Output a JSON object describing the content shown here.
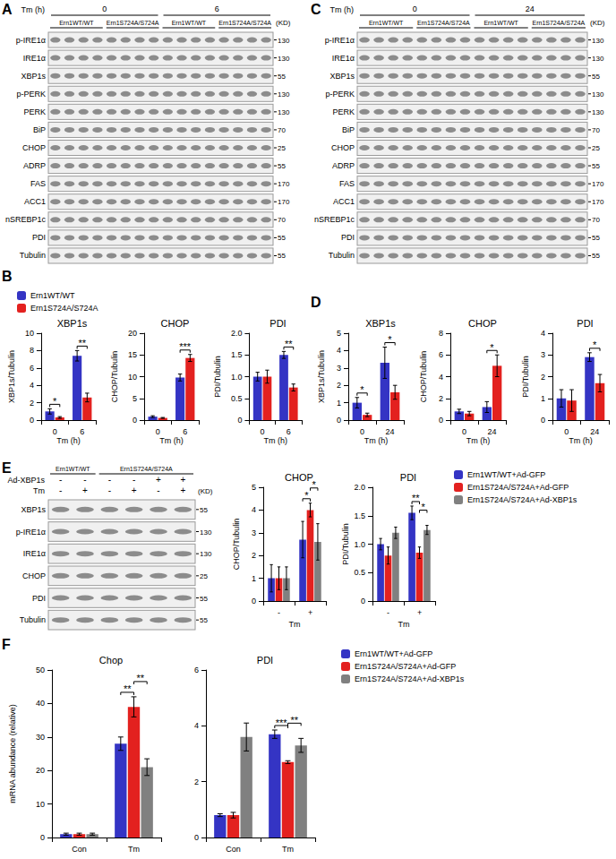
{
  "blots": [
    {
      "panel": "A",
      "condition_label": "Tm (h)",
      "conditions": [
        {
          "label": "0",
          "genotypes": [
            {
              "label": "Ern1WT/WT",
              "lanes": 4
            },
            {
              "label": "Ern1S724A/S724A",
              "lanes": 4
            }
          ]
        },
        {
          "label": "6",
          "genotypes": [
            {
              "label": "Ern1WT/WT",
              "lanes": 4
            },
            {
              "label": "Ern1S724A/S724A",
              "lanes": 4
            }
          ]
        }
      ],
      "kd_unit": "(KD)",
      "rows": [
        {
          "label": "p-IRE1α",
          "kd": 130
        },
        {
          "label": "IRE1α",
          "kd": 130
        },
        {
          "label": "XBP1s",
          "kd": 55
        },
        {
          "label": "p-PERK",
          "kd": 130
        },
        {
          "label": "PERK",
          "kd": 130
        },
        {
          "label": "BiP",
          "kd": 70
        },
        {
          "label": "CHOP",
          "kd": 25
        },
        {
          "label": "ADRP",
          "kd": 55
        },
        {
          "label": "FAS",
          "kd": 170
        },
        {
          "label": "ACC1",
          "kd": 170
        },
        {
          "label": "nSREBP1c",
          "kd": 70
        },
        {
          "label": "PDI",
          "kd": 55
        },
        {
          "label": "Tubulin",
          "kd": 55
        }
      ]
    },
    {
      "panel": "C",
      "condition_label": "Tm (h)",
      "conditions": [
        {
          "label": "0",
          "genotypes": [
            {
              "label": "Ern1WT/WT",
              "lanes": 4
            },
            {
              "label": "Ern1S724A/S724A",
              "lanes": 4
            }
          ]
        },
        {
          "label": "24",
          "genotypes": [
            {
              "label": "Ern1WT/WT",
              "lanes": 4
            },
            {
              "label": "Ern1S724A/S724A",
              "lanes": 4
            }
          ]
        }
      ],
      "kd_unit": "(KD)",
      "rows": [
        {
          "label": "p-IRE1α",
          "kd": 130
        },
        {
          "label": "IRE1α",
          "kd": 130
        },
        {
          "label": "XBP1s",
          "kd": 55
        },
        {
          "label": "p-PERK",
          "kd": 130
        },
        {
          "label": "PERK",
          "kd": 130
        },
        {
          "label": "BiP",
          "kd": 70
        },
        {
          "label": "CHOP",
          "kd": 25
        },
        {
          "label": "ADRP",
          "kd": 55
        },
        {
          "label": "FAS",
          "kd": 170
        },
        {
          "label": "ACC1",
          "kd": 170
        },
        {
          "label": "nSREBP1c",
          "kd": 70
        },
        {
          "label": "PDI",
          "kd": 55
        },
        {
          "label": "Tubulin",
          "kd": 55
        }
      ]
    },
    {
      "panel": "E",
      "genotypes": [
        {
          "label": "Ern1WT/WT",
          "lanes": 2
        },
        {
          "label": "Ern1S724A/S724A",
          "lanes": 4
        }
      ],
      "treatments": [
        {
          "label": "Ad-XBP1s",
          "signs": [
            "-",
            "-",
            "-",
            "-",
            "+",
            "+"
          ]
        },
        {
          "label": "Tm",
          "signs": [
            "-",
            "+",
            "-",
            "+",
            "-",
            "+"
          ]
        }
      ],
      "kd_unit": "(KD)",
      "rows": [
        {
          "label": "XBP1s",
          "kd": 55
        },
        {
          "label": "p-IRE1α",
          "kd": 130
        },
        {
          "label": "IRE1α",
          "kd": 130
        },
        {
          "label": "CHOP",
          "kd": 25
        },
        {
          "label": "PDI",
          "kd": 55
        },
        {
          "label": "Tubulin",
          "kd": 55
        }
      ]
    }
  ],
  "chart_data": [
    {
      "panel": "B",
      "type": "bar",
      "title": "XBP1s",
      "y_label": "XBP1s/Tubulin",
      "x_label": "Tm (h)",
      "categories": [
        "0",
        "6"
      ],
      "series": [
        {
          "name": "Ern1WT/WT",
          "color": "#3434c4",
          "values": [
            1.0,
            7.4
          ],
          "errors": [
            0.3,
            0.6
          ]
        },
        {
          "name": "Ern1S724A/S724A",
          "color": "#e3211f",
          "values": [
            0.3,
            2.6
          ],
          "errors": [
            0.1,
            0.5
          ]
        }
      ],
      "ylim": [
        0,
        10
      ],
      "yticks": [
        0,
        2,
        4,
        6,
        8,
        10
      ],
      "grid": false,
      "legend": "top-left",
      "annotations": [
        {
          "text": "*",
          "category": "0",
          "between": [
            "Ern1WT/WT",
            "Ern1S724A/S724A"
          ]
        },
        {
          "text": "**",
          "category": "6",
          "between": [
            "Ern1WT/WT",
            "Ern1S724A/S724A"
          ]
        }
      ]
    },
    {
      "type": "bar",
      "title": "CHOP",
      "y_label": "CHOP/Tubulin",
      "x_label": "Tm (h)",
      "categories": [
        "0",
        "6"
      ],
      "series": [
        {
          "name": "Ern1WT/WT",
          "color": "#3434c4",
          "values": [
            0.8,
            9.8
          ],
          "errors": [
            0.2,
            0.8
          ]
        },
        {
          "name": "Ern1S724A/S724A",
          "color": "#e3211f",
          "values": [
            0.5,
            14.3
          ],
          "errors": [
            0.1,
            0.8
          ]
        }
      ],
      "ylim": [
        0,
        20
      ],
      "yticks": [
        0,
        5,
        10,
        15,
        20
      ],
      "grid": false,
      "annotations": [
        {
          "text": "***",
          "category": "6",
          "between": [
            "Ern1WT/WT",
            "Ern1S724A/S724A"
          ]
        }
      ]
    },
    {
      "type": "bar",
      "title": "PDI",
      "y_label": "PDI/Tubulin",
      "x_label": "Tm (h)",
      "categories": [
        "0",
        "6"
      ],
      "series": [
        {
          "name": "Ern1WT/WT",
          "color": "#3434c4",
          "values": [
            1.0,
            1.5
          ],
          "errors": [
            0.1,
            0.08
          ]
        },
        {
          "name": "Ern1S724A/S724A",
          "color": "#e3211f",
          "values": [
            1.0,
            0.75
          ],
          "errors": [
            0.15,
            0.08
          ]
        }
      ],
      "ylim": [
        0,
        2
      ],
      "yticks": [
        0,
        0.5,
        {
          "value": 1,
          "label": "1.0"
        },
        1.5,
        {
          "value": 2,
          "label": "2.0"
        }
      ],
      "grid": false,
      "annotations": [
        {
          "text": "**",
          "category": "6",
          "between": [
            "Ern1WT/WT",
            "Ern1S724A/S724A"
          ]
        }
      ]
    },
    {
      "panel": "D",
      "type": "bar",
      "title": "XBP1s",
      "y_label": "XBP1s/Tubulin",
      "x_label": "Tm (h)",
      "categories": [
        "0",
        "24"
      ],
      "series": [
        {
          "name": "Ern1WT/WT",
          "color": "#3434c4",
          "values": [
            1.0,
            3.3
          ],
          "errors": [
            0.3,
            0.9
          ]
        },
        {
          "name": "Ern1S724A/S724A",
          "color": "#e3211f",
          "values": [
            0.3,
            1.6
          ],
          "errors": [
            0.1,
            0.4
          ]
        }
      ],
      "ylim": [
        0,
        5
      ],
      "yticks": [
        0,
        1,
        2,
        3,
        4,
        5
      ],
      "grid": false,
      "annotations": [
        {
          "text": "*",
          "category": "0",
          "between": [
            "Ern1WT/WT",
            "Ern1S724A/S724A"
          ]
        },
        {
          "text": "*",
          "category": "24",
          "between": [
            "Ern1WT/WT",
            "Ern1S724A/S724A"
          ]
        }
      ]
    },
    {
      "type": "bar",
      "title": "CHOP",
      "y_label": "CHOP/Tubulin",
      "x_label": "Tm (h)",
      "categories": [
        "0",
        "24"
      ],
      "series": [
        {
          "name": "Ern1WT/WT",
          "color": "#3434c4",
          "values": [
            0.8,
            1.2
          ],
          "errors": [
            0.2,
            0.5
          ]
        },
        {
          "name": "Ern1S724A/S724A",
          "color": "#e3211f",
          "values": [
            0.6,
            5.0
          ],
          "errors": [
            0.2,
            1.0
          ]
        }
      ],
      "ylim": [
        0,
        8
      ],
      "yticks": [
        0,
        2,
        4,
        6,
        8
      ],
      "grid": false,
      "annotations": [
        {
          "text": "*",
          "category": "24",
          "between": [
            "Ern1WT/WT",
            "Ern1S724A/S724A"
          ]
        }
      ]
    },
    {
      "type": "bar",
      "title": "PDI",
      "y_label": "PDI/Tubulin",
      "x_label": "Tm (h)",
      "categories": [
        "0",
        "24"
      ],
      "series": [
        {
          "name": "Ern1WT/WT",
          "color": "#3434c4",
          "values": [
            1.0,
            2.9
          ],
          "errors": [
            0.4,
            0.2
          ]
        },
        {
          "name": "Ern1S724A/S724A",
          "color": "#e3211f",
          "values": [
            0.9,
            1.7
          ],
          "errors": [
            0.5,
            0.4
          ]
        }
      ],
      "ylim": [
        0,
        4
      ],
      "yticks": [
        0,
        1,
        2,
        3,
        4
      ],
      "grid": false,
      "annotations": [
        {
          "text": "*",
          "category": "24",
          "between": [
            "Ern1WT/WT",
            "Ern1S724A/S724A"
          ]
        }
      ]
    },
    {
      "type": "bar",
      "title": "CHOP",
      "y_label": "CHOP/Tubulin",
      "x_label": "Tm",
      "categories": [
        "-",
        "+"
      ],
      "series": [
        {
          "name": "Ern1WT/WT+Ad-GFP",
          "color": "#3434c4",
          "values": [
            1.0,
            2.7
          ],
          "errors": [
            0.6,
            0.8
          ]
        },
        {
          "name": "Ern1S724A/S724A+Ad-GFP",
          "color": "#e3211f",
          "values": [
            1.0,
            4.0
          ],
          "errors": [
            0.5,
            0.3
          ]
        },
        {
          "name": "Ern1S724A/S724A+Ad-XBP1s",
          "color": "#808080",
          "values": [
            1.0,
            2.6
          ],
          "errors": [
            0.5,
            0.8
          ]
        }
      ],
      "ylim": [
        0,
        5
      ],
      "yticks": [
        0,
        1,
        2,
        3,
        4,
        5
      ],
      "grid": false,
      "annotations": [
        {
          "text": "*",
          "category": "+",
          "between": [
            "Ern1WT/WT+Ad-GFP",
            "Ern1S724A/S724A+Ad-GFP"
          ]
        },
        {
          "text": "*",
          "category": "+",
          "between": [
            "Ern1S724A/S724A+Ad-GFP",
            "Ern1S724A/S724A+Ad-XBP1s"
          ]
        }
      ]
    },
    {
      "type": "bar",
      "title": "PDI",
      "y_label": "PDI/Tubulin",
      "x_label": "Tm",
      "categories": [
        "-",
        "+"
      ],
      "series": [
        {
          "name": "Ern1WT/WT+Ad-GFP",
          "color": "#3434c4",
          "values": [
            1.0,
            1.55
          ],
          "errors": [
            0.1,
            0.12
          ]
        },
        {
          "name": "Ern1S724A/S724A+Ad-GFP",
          "color": "#e3211f",
          "values": [
            0.8,
            0.85
          ],
          "errors": [
            0.15,
            0.1
          ]
        },
        {
          "name": "Ern1S724A/S724A+Ad-XBP1s",
          "color": "#808080",
          "values": [
            1.2,
            1.25
          ],
          "errors": [
            0.1,
            0.08
          ]
        }
      ],
      "ylim": [
        0,
        2
      ],
      "yticks": [
        0,
        0.5,
        {
          "value": 1,
          "label": "1.0"
        },
        1.5,
        {
          "value": 2,
          "label": "2.0"
        }
      ],
      "grid": false,
      "legend": "right",
      "annotations": [
        {
          "text": "**",
          "category": "+",
          "between": [
            "Ern1WT/WT+Ad-GFP",
            "Ern1S724A/S724A+Ad-GFP"
          ]
        },
        {
          "text": "*",
          "category": "+",
          "between": [
            "Ern1S724A/S724A+Ad-GFP",
            "Ern1S724A/S724A+Ad-XBP1s"
          ]
        }
      ]
    },
    {
      "panel": "F",
      "type": "bar",
      "title": "Chop",
      "y_label": "mRNA abundance (relative)",
      "categories": [
        "Con",
        "Tm"
      ],
      "series": [
        {
          "name": "Ern1WT/WT+Ad-GFP",
          "color": "#3434c4",
          "values": [
            1.0,
            28
          ],
          "errors": [
            0.3,
            2
          ]
        },
        {
          "name": "Ern1S724A/S724A+Ad-GFP",
          "color": "#e3211f",
          "values": [
            1.0,
            39
          ],
          "errors": [
            0.3,
            3
          ]
        },
        {
          "name": "Ern1S724A/S724A+Ad-XBP1s",
          "color": "#808080",
          "values": [
            1.0,
            21
          ],
          "errors": [
            0.3,
            2.5
          ]
        }
      ],
      "ylim": [
        0,
        50
      ],
      "yticks": [
        0,
        10,
        20,
        30,
        40,
        50
      ],
      "grid": false,
      "annotations": [
        {
          "text": "**",
          "category": "Tm",
          "between": [
            "Ern1WT/WT+Ad-GFP",
            "Ern1S724A/S724A+Ad-GFP"
          ]
        },
        {
          "text": "**",
          "category": "Tm",
          "between": [
            "Ern1S724A/S724A+Ad-GFP",
            "Ern1S724A/S724A+Ad-XBP1s"
          ]
        }
      ]
    },
    {
      "type": "bar",
      "title": "PDI",
      "categories": [
        "Con",
        "Tm"
      ],
      "series": [
        {
          "name": "Ern1WT/WT+Ad-GFP",
          "color": "#3434c4",
          "values": [
            0.8,
            3.7
          ],
          "errors": [
            0.05,
            0.15
          ]
        },
        {
          "name": "Ern1S724A/S724A+Ad-GFP",
          "color": "#e3211f",
          "values": [
            0.8,
            2.7
          ],
          "errors": [
            0.1,
            0.05
          ]
        },
        {
          "name": "Ern1S724A/S724A+Ad-XBP1s",
          "color": "#808080",
          "values": [
            3.6,
            3.3
          ],
          "errors": [
            0.5,
            0.25
          ]
        }
      ],
      "ylim": [
        0,
        6
      ],
      "yticks": [
        0,
        2,
        4,
        6
      ],
      "grid": false,
      "legend": "right",
      "annotations": [
        {
          "text": "***",
          "category": "Tm",
          "between": [
            "Ern1WT/WT+Ad-GFP",
            "Ern1S724A/S724A+Ad-GFP"
          ]
        },
        {
          "text": "**",
          "category": "Tm",
          "between": [
            "Ern1S724A/S724A+Ad-GFP",
            "Ern1S724A/S724A+Ad-XBP1s"
          ]
        }
      ]
    }
  ]
}
